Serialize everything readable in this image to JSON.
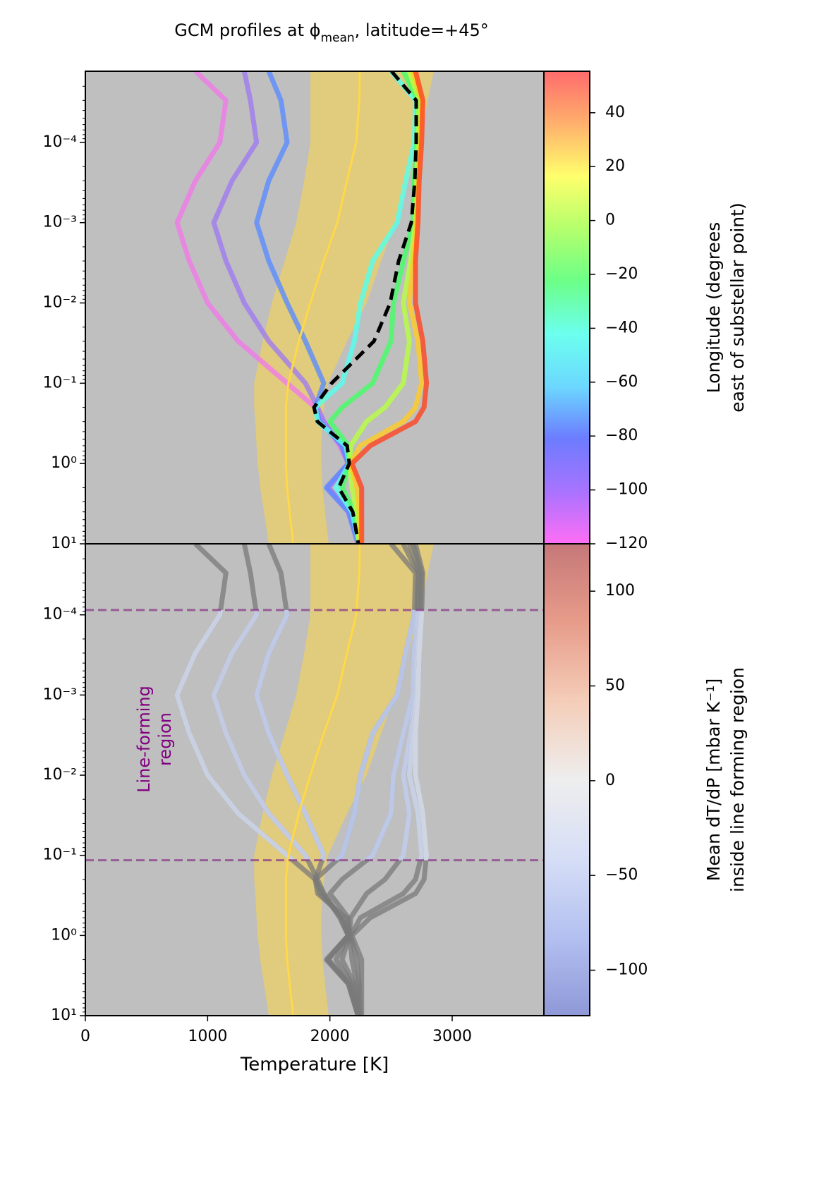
{
  "chart_data": [
    {
      "type": "line",
      "title": [
        "GCM profiles at ϕ",
        "mean",
        ", latitude=+45°"
      ],
      "xlim": [
        0,
        3750
      ],
      "xticks": [
        0,
        1000,
        2000,
        3000
      ],
      "ylim": [
        10,
        1.3e-05
      ],
      "log_y": true,
      "yticks": [
        {
          "value": 0.0001,
          "label": "10⁻⁴"
        },
        {
          "value": 0.001,
          "label": "10⁻³"
        },
        {
          "value": 0.01,
          "label": "10⁻²"
        },
        {
          "value": 0.1,
          "label": "10⁻¹"
        },
        {
          "value": 1,
          "label": "10⁰"
        },
        {
          "value": 10,
          "label": "10¹"
        }
      ],
      "pressure": [
        1.3e-05,
        3e-05,
        0.0001,
        0.0003,
        0.001,
        0.003,
        0.01,
        0.03,
        0.1,
        0.2,
        0.3,
        0.6,
        1,
        2,
        4,
        10
      ],
      "band": {
        "color": "#f0d060",
        "min": [
          1840,
          1840,
          1840,
          1790,
          1725,
          1630,
          1525,
          1450,
          1380,
          1380,
          1390,
          1400,
          1410,
          1430,
          1460,
          1500
        ],
        "max": [
          2850,
          2800,
          2735,
          2640,
          2535,
          2420,
          2300,
          2140,
          1985,
          1950,
          1940,
          1930,
          1930,
          1940,
          1960,
          1990
        ]
      },
      "reference": {
        "color": "#ffd84a",
        "values": [
          2245,
          2240,
          2215,
          2140,
          2060,
          1950,
          1840,
          1745,
          1660,
          1640,
          1640,
          1640,
          1640,
          1650,
          1670,
          1700
        ]
      },
      "series": [
        {
          "color": "#f07ae8",
          "values": [
            900,
            1150,
            1100,
            900,
            750,
            850,
            1000,
            1250,
            1650,
            1880,
            1950,
            2080,
            2150,
            1980,
            2150,
            2230
          ]
        },
        {
          "color": "#a07cf0",
          "values": [
            1300,
            1350,
            1400,
            1200,
            1050,
            1150,
            1300,
            1500,
            1800,
            1900,
            1950,
            2090,
            2150,
            1990,
            2160,
            2230
          ]
        },
        {
          "color": "#5a8cff",
          "values": [
            1500,
            1600,
            1650,
            1500,
            1400,
            1500,
            1650,
            1800,
            1950,
            1880,
            1920,
            2100,
            2150,
            1970,
            2150,
            2230
          ]
        },
        {
          "color": "#55ffee",
          "values": [
            2500,
            2700,
            2690,
            2620,
            2550,
            2350,
            2250,
            2200,
            2100,
            1880,
            1900,
            2130,
            2160,
            2050,
            2180,
            2240
          ]
        },
        {
          "color": "#44ff66",
          "values": [
            2600,
            2720,
            2710,
            2690,
            2680,
            2600,
            2520,
            2500,
            2350,
            2100,
            2000,
            2150,
            2160,
            2100,
            2200,
            2240
          ]
        },
        {
          "color": "#b8ff40",
          "values": [
            2650,
            2730,
            2720,
            2710,
            2700,
            2660,
            2600,
            2650,
            2600,
            2450,
            2300,
            2170,
            2160,
            2180,
            2220,
            2240
          ]
        },
        {
          "color": "#ffcc22",
          "values": [
            2680,
            2750,
            2740,
            2720,
            2710,
            2680,
            2650,
            2720,
            2750,
            2700,
            2600,
            2250,
            2170,
            2220,
            2240,
            2250
          ]
        },
        {
          "color": "#ff4422",
          "values": [
            2700,
            2760,
            2750,
            2730,
            2720,
            2700,
            2700,
            2760,
            2790,
            2770,
            2700,
            2330,
            2180,
            2260,
            2260,
            2260
          ]
        }
      ],
      "mean": {
        "color": "#000000",
        "values": [
          2504,
          2706,
          2706,
          2695,
          2666,
          2562,
          2493,
          2360,
          2014,
          1870,
          1898,
          2141,
          2158,
          2072,
          2187,
          2233
        ]
      },
      "colorbar": {
        "label": [
          "Longitude (degrees",
          "east of substellar point)"
        ],
        "lim": [
          -120,
          55.4
        ],
        "colormap": [
          "#ff6ef5",
          "#a873ff",
          "#6c7cff",
          "#6cd8ff",
          "#6cffee",
          "#6cff88",
          "#b4ff6c",
          "#ffff6c",
          "#ffb06c",
          "#ff6c6c"
        ],
        "ticks": [
          {
            "value": -120,
            "label": "−120"
          },
          {
            "value": -100,
            "label": "−100"
          },
          {
            "value": -80,
            "label": "−80"
          },
          {
            "value": -60,
            "label": "−60"
          },
          {
            "value": -40,
            "label": "−40"
          },
          {
            "value": -20,
            "label": "−20"
          },
          0,
          20,
          40
        ]
      }
    },
    {
      "type": "line",
      "xlim": [
        0,
        3750
      ],
      "xticks": [
        0,
        1000,
        2000,
        3000
      ],
      "xlabel": "Temperature [K]",
      "ylim": [
        10,
        1.3e-05
      ],
      "log_y": true,
      "yticks": [
        {
          "value": 0.0001,
          "label": "10⁻⁴"
        },
        {
          "value": 0.001,
          "label": "10⁻³"
        },
        {
          "value": 0.01,
          "label": "10⁻²"
        },
        {
          "value": 0.1,
          "label": "10⁻¹"
        },
        {
          "value": 1,
          "label": "10⁰"
        },
        {
          "value": 10,
          "label": "10¹"
        }
      ],
      "pressure": [
        1.3e-05,
        3e-05,
        0.0001,
        0.0003,
        0.001,
        0.003,
        0.01,
        0.03,
        0.1,
        0.2,
        0.3,
        0.6,
        1,
        2,
        4,
        10
      ],
      "band": {
        "color": "#f0d060",
        "min": [
          1840,
          1840,
          1840,
          1790,
          1725,
          1630,
          1525,
          1450,
          1380,
          1380,
          1390,
          1400,
          1410,
          1430,
          1460,
          1500
        ],
        "max": [
          2850,
          2800,
          2735,
          2640,
          2535,
          2420,
          2300,
          2140,
          1985,
          1950,
          1940,
          1930,
          1930,
          1940,
          1960,
          1990
        ]
      },
      "reference": {
        "color": "#ffd84a",
        "values": [
          2245,
          2240,
          2215,
          2140,
          2060,
          1950,
          1840,
          1745,
          1660,
          1640,
          1640,
          1640,
          1640,
          1650,
          1670,
          1700
        ]
      },
      "outside_color": "#7a7a7a",
      "series": [
        {
          "color": "#d4dcf0",
          "values": [
            900,
            1150,
            1100,
            900,
            750,
            850,
            1000,
            1250,
            1650,
            1880,
            1950,
            2080,
            2150,
            1980,
            2150,
            2230
          ]
        },
        {
          "color": "#ccd6f2",
          "values": [
            1300,
            1350,
            1400,
            1200,
            1050,
            1150,
            1300,
            1500,
            1800,
            1900,
            1950,
            2090,
            2150,
            1990,
            2160,
            2230
          ]
        },
        {
          "color": "#c8d4f4",
          "values": [
            1500,
            1600,
            1650,
            1500,
            1400,
            1500,
            1650,
            1800,
            1950,
            1880,
            1920,
            2100,
            2150,
            1970,
            2150,
            2230
          ]
        },
        {
          "color": "#bfcef6",
          "values": [
            2500,
            2700,
            2690,
            2620,
            2550,
            2350,
            2250,
            2200,
            2100,
            1880,
            1900,
            2130,
            2160,
            2050,
            2180,
            2240
          ]
        },
        {
          "color": "#c4d2f6",
          "values": [
            2600,
            2720,
            2710,
            2690,
            2680,
            2600,
            2520,
            2500,
            2350,
            2100,
            2000,
            2150,
            2160,
            2100,
            2200,
            2240
          ]
        },
        {
          "color": "#cad6f4",
          "values": [
            2650,
            2730,
            2720,
            2710,
            2700,
            2660,
            2600,
            2650,
            2600,
            2450,
            2300,
            2170,
            2160,
            2180,
            2220,
            2240
          ]
        },
        {
          "color": "#d2dcf2",
          "values": [
            2680,
            2750,
            2740,
            2720,
            2710,
            2680,
            2650,
            2720,
            2750,
            2700,
            2600,
            2250,
            2170,
            2220,
            2240,
            2250
          ]
        },
        {
          "color": "#dae2f0",
          "values": [
            2700,
            2760,
            2750,
            2730,
            2720,
            2700,
            2700,
            2760,
            2790,
            2770,
            2700,
            2330,
            2180,
            2260,
            2260,
            2260
          ]
        }
      ],
      "region": {
        "bounds": [
          8.7e-05,
          0.115
        ],
        "color": "#8a3c8a",
        "label": [
          "Line-forming",
          "region"
        ]
      },
      "colorbar": {
        "label": [
          "Mean dT/dP [mbar K⁻¹]",
          "inside line forming region"
        ],
        "lim": [
          -124,
          125
        ],
        "colormap": [
          "#8f98d8",
          "#b3c0f0",
          "#d6def6",
          "#eeeeee",
          "#f4cdb8",
          "#e79c8a",
          "#c57878"
        ],
        "ticks": [
          {
            "value": -100,
            "label": "−100"
          },
          {
            "value": -50,
            "label": "−50"
          },
          0,
          50,
          100
        ]
      }
    }
  ]
}
